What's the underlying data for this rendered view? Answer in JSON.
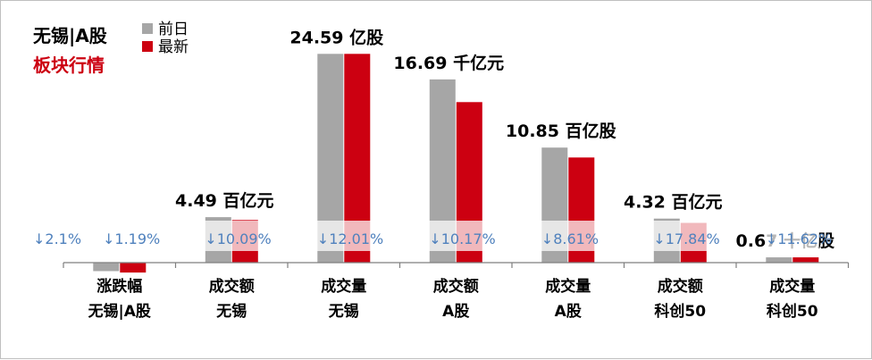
{
  "chart_data": {
    "type": "bar",
    "title_line1": "无锡|A股",
    "title_line2": "板块行情",
    "colors": {
      "prev": "#a6a6a6",
      "latest": "#cc0011",
      "title2": "#cc0011",
      "pct": "#4f81bd",
      "highlight": "#ffffff"
    },
    "legend": [
      {
        "name": "前日",
        "color": "#a6a6a6"
      },
      {
        "name": "最新",
        "color": "#cc0011"
      }
    ],
    "categories": [
      {
        "line1": "涨跌幅",
        "line2": "无锡|A股"
      },
      {
        "line1": "成交额",
        "line2": "无锡"
      },
      {
        "line1": "成交量",
        "line2": "无锡"
      },
      {
        "line1": "成交额",
        "line2": "A股"
      },
      {
        "line1": "成交量",
        "line2": "A股"
      },
      {
        "line1": "成交额",
        "line2": "科创50"
      },
      {
        "line1": "成交量",
        "line2": "科创50"
      }
    ],
    "series": [
      {
        "name": "前日",
        "values": [
          -0.6,
          3.2,
          14.7,
          12.9,
          8.1,
          3.1,
          0.37
        ]
      },
      {
        "name": "最新",
        "values": [
          -0.7,
          3.0,
          14.7,
          11.3,
          7.4,
          2.8,
          0.37
        ]
      }
    ],
    "value_labels": [
      "",
      "4.49 百亿元",
      "24.59 亿股",
      "16.69 千亿元",
      "10.85 百亿股",
      "4.32 百亿元",
      "0.67 十亿股"
    ],
    "change_labels": [
      {
        "arrow": "↓",
        "text": "2.1%"
      },
      {
        "arrow": "↓",
        "text": "10.09%"
      },
      {
        "arrow": "↓",
        "text": "12.01%"
      },
      {
        "arrow": "↓",
        "text": "10.17%"
      },
      {
        "arrow": "↓",
        "text": "8.61%"
      },
      {
        "arrow": "↓",
        "text": "17.84%"
      },
      {
        "arrow": "↓",
        "text": "11.62%"
      }
    ],
    "extra_change_label": {
      "arrow": "↓",
      "text": "1.19%"
    },
    "ylim": [
      -1,
      16
    ]
  }
}
